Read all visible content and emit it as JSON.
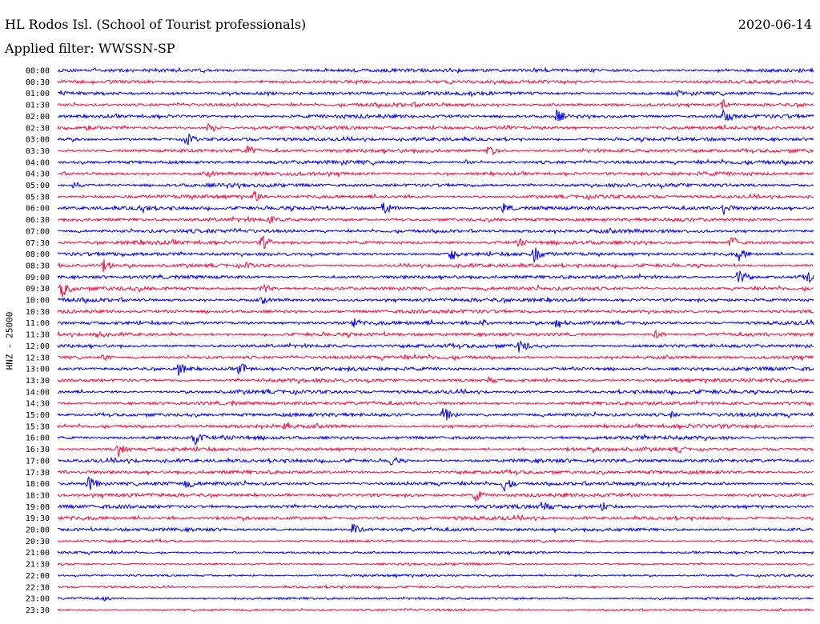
{
  "header": {
    "station": "HL Rodos Isl. (School of Tourist professionals)",
    "date": "2020-06-14",
    "filter": "Applied filter: WWSSN-SP"
  },
  "channel_label": "HNZ - 25000",
  "chart_data": {
    "type": "line",
    "subtype": "helicorder",
    "title": "HL Rodos Isl. (School of Tourist professionals)",
    "date": "2020-06-14",
    "filter": "WWSSN-SP",
    "ylabel": "HNZ - 25000",
    "row_labels": [
      "00:00",
      "00:30",
      "01:00",
      "01:30",
      "02:00",
      "02:30",
      "03:00",
      "03:30",
      "04:00",
      "04:30",
      "05:00",
      "05:30",
      "06:00",
      "06:30",
      "07:00",
      "07:30",
      "08:00",
      "08:30",
      "09:00",
      "09:30",
      "10:00",
      "10:30",
      "11:00",
      "11:30",
      "12:00",
      "12:30",
      "13:00",
      "13:30",
      "14:00",
      "14:30",
      "15:00",
      "15:30",
      "16:00",
      "16:30",
      "17:00",
      "17:30",
      "18:00",
      "18:30",
      "19:00",
      "19:30",
      "20:00",
      "20:30",
      "21:00",
      "21:30",
      "22:00",
      "22:30",
      "23:00",
      "23:30"
    ],
    "row_colors": [
      "#0000ee",
      "#ee1144"
    ],
    "events": [
      {
        "row": "00:00",
        "pos": 0.05,
        "amp": 4
      },
      {
        "row": "00:30",
        "pos": 0.52,
        "amp": 3
      },
      {
        "row": "00:30",
        "pos": 0.67,
        "amp": 3
      },
      {
        "row": "01:00",
        "pos": 0.82,
        "amp": 4
      },
      {
        "row": "01:30",
        "pos": 0.88,
        "amp": 7
      },
      {
        "row": "02:00",
        "pos": 0.66,
        "amp": 9
      },
      {
        "row": "02:00",
        "pos": 0.88,
        "amp": 12
      },
      {
        "row": "02:30",
        "pos": 0.04,
        "amp": 6
      },
      {
        "row": "02:30",
        "pos": 0.2,
        "amp": 7
      },
      {
        "row": "02:30",
        "pos": 0.59,
        "amp": 5
      },
      {
        "row": "03:00",
        "pos": 0.17,
        "amp": 9
      },
      {
        "row": "03:30",
        "pos": 0.25,
        "amp": 9
      },
      {
        "row": "03:30",
        "pos": 0.57,
        "amp": 9
      },
      {
        "row": "04:00",
        "pos": 0.54,
        "amp": 4
      },
      {
        "row": "04:30",
        "pos": 0.2,
        "amp": 5
      },
      {
        "row": "05:00",
        "pos": 0.02,
        "amp": 6
      },
      {
        "row": "05:30",
        "pos": 0.26,
        "amp": 9
      },
      {
        "row": "06:00",
        "pos": 0.11,
        "amp": 7
      },
      {
        "row": "06:00",
        "pos": 0.43,
        "amp": 10
      },
      {
        "row": "06:00",
        "pos": 0.59,
        "amp": 8
      },
      {
        "row": "06:00",
        "pos": 0.88,
        "amp": 10
      },
      {
        "row": "06:30",
        "pos": 0.28,
        "amp": 6
      },
      {
        "row": "07:30",
        "pos": 0.27,
        "amp": 10
      },
      {
        "row": "07:30",
        "pos": 0.61,
        "amp": 6
      },
      {
        "row": "07:30",
        "pos": 0.89,
        "amp": 11
      },
      {
        "row": "08:00",
        "pos": 0.52,
        "amp": 10
      },
      {
        "row": "08:00",
        "pos": 0.63,
        "amp": 11
      },
      {
        "row": "08:00",
        "pos": 0.9,
        "amp": 10
      },
      {
        "row": "08:30",
        "pos": 0.06,
        "amp": 9
      },
      {
        "row": "08:30",
        "pos": 0.25,
        "amp": 5
      },
      {
        "row": "09:00",
        "pos": 0.9,
        "amp": 12
      },
      {
        "row": "09:00",
        "pos": 0.99,
        "amp": 11
      },
      {
        "row": "09:30",
        "pos": 0.005,
        "amp": 12
      },
      {
        "row": "09:30",
        "pos": 0.27,
        "amp": 8
      },
      {
        "row": "10:00",
        "pos": 0.27,
        "amp": 6
      },
      {
        "row": "11:00",
        "pos": 0.39,
        "amp": 8
      },
      {
        "row": "11:00",
        "pos": 0.56,
        "amp": 7
      },
      {
        "row": "11:00",
        "pos": 0.66,
        "amp": 9
      },
      {
        "row": "11:30",
        "pos": 0.05,
        "amp": 9
      },
      {
        "row": "11:30",
        "pos": 0.79,
        "amp": 6
      },
      {
        "row": "12:00",
        "pos": 0.61,
        "amp": 10
      },
      {
        "row": "12:30",
        "pos": 0.06,
        "amp": 5
      },
      {
        "row": "13:00",
        "pos": 0.16,
        "amp": 9
      },
      {
        "row": "13:00",
        "pos": 0.24,
        "amp": 11
      },
      {
        "row": "13:30",
        "pos": 0.57,
        "amp": 6
      },
      {
        "row": "14:30",
        "pos": 0.23,
        "amp": 4
      },
      {
        "row": "15:00",
        "pos": 0.51,
        "amp": 11
      },
      {
        "row": "15:00",
        "pos": 0.81,
        "amp": 5
      },
      {
        "row": "15:30",
        "pos": 0.3,
        "amp": 8
      },
      {
        "row": "16:00",
        "pos": 0.18,
        "amp": 11
      },
      {
        "row": "16:30",
        "pos": 0.08,
        "amp": 10
      },
      {
        "row": "16:30",
        "pos": 0.82,
        "amp": 6
      },
      {
        "row": "17:00",
        "pos": 0.44,
        "amp": 8
      },
      {
        "row": "18:00",
        "pos": 0.04,
        "amp": 11
      },
      {
        "row": "18:00",
        "pos": 0.17,
        "amp": 8
      },
      {
        "row": "18:00",
        "pos": 0.59,
        "amp": 11
      },
      {
        "row": "18:30",
        "pos": 0.55,
        "amp": 10
      },
      {
        "row": "19:00",
        "pos": 0.64,
        "amp": 10
      },
      {
        "row": "19:00",
        "pos": 0.72,
        "amp": 7
      },
      {
        "row": "20:00",
        "pos": 0.39,
        "amp": 8
      },
      {
        "row": "23:00",
        "pos": 0.06,
        "amp": 4
      }
    ]
  }
}
